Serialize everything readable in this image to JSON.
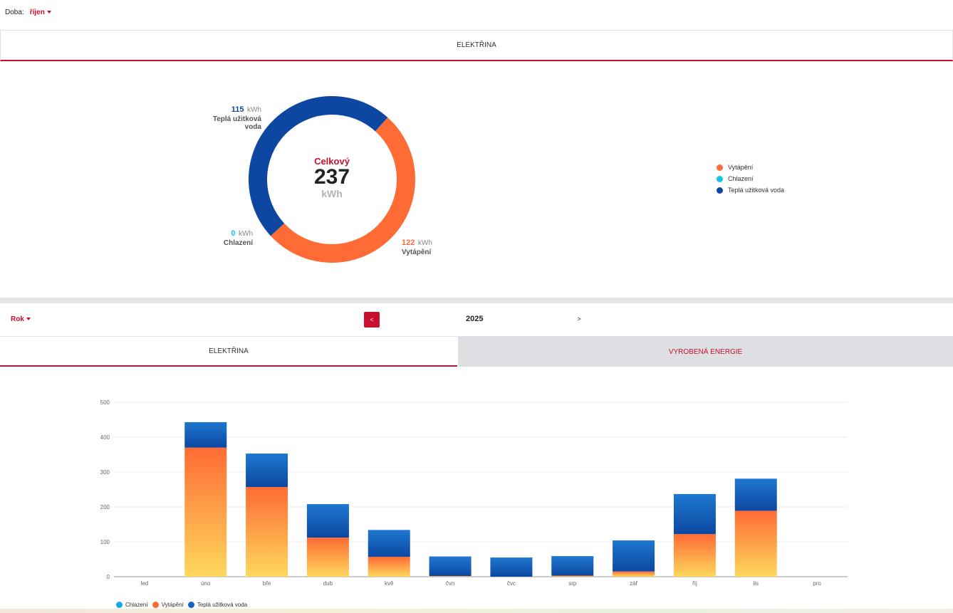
{
  "period": {
    "label": "Doba:",
    "value": "říjen"
  },
  "top_tab": {
    "label": "ELEKTŘINA"
  },
  "donut": {
    "center_title": "Celkový",
    "center_value": "237",
    "center_unit": "kWh",
    "unit": "kWh",
    "segments": [
      {
        "name": "Vytápění",
        "value": 122,
        "color": "#ff6b35"
      },
      {
        "name": "Chlazení",
        "value": 0,
        "color": "#18c3e8"
      },
      {
        "name": "Teplá užitková voda",
        "value": 115,
        "color": "#0d47a1"
      }
    ],
    "labels": {
      "heating": {
        "value": "122",
        "unit": "kWh",
        "name": "Vytápění"
      },
      "cooling": {
        "value": "0",
        "unit": "kWh",
        "name": "Chlazení"
      },
      "hot_water": {
        "value": "115",
        "unit": "kWh",
        "name": "Teplá užitková voda"
      }
    }
  },
  "legend": [
    {
      "label": "Vytápění",
      "color": "#ff6b35"
    },
    {
      "label": "Chlazení",
      "color": "#18c3e8"
    },
    {
      "label": "Teplá užitková voda",
      "color": "#0d47a1"
    }
  ],
  "year_nav": {
    "granularity": "Rok",
    "prev_label": "<",
    "year": "2025",
    "next_label": ">"
  },
  "tabs": {
    "electricity": "ELEKTŘINA",
    "produced": "VYROBENÁ ENERGIE"
  },
  "chart_data": {
    "type": "bar",
    "stacked": true,
    "categories": [
      "led",
      "úno",
      "bře",
      "dub",
      "kvě",
      "čvn",
      "čvc",
      "srp",
      "zář",
      "říj",
      "lis",
      "pro"
    ],
    "series": [
      {
        "name": "Chlazení",
        "values": [
          0,
          0,
          0,
          0,
          0,
          0,
          0,
          0,
          0,
          0,
          0,
          0
        ]
      },
      {
        "name": "Vytápění",
        "values": [
          0,
          370,
          257,
          112,
          57,
          2,
          0,
          3,
          15,
          122,
          189,
          0
        ]
      },
      {
        "name": "Teplá užitková voda",
        "values": [
          0,
          73,
          96,
          96,
          77,
          56,
          55,
          56,
          89,
          115,
          92,
          0
        ]
      }
    ],
    "yticks": [
      0,
      100,
      200,
      300,
      400,
      500
    ],
    "ylim": [
      0,
      500
    ],
    "grid": true,
    "legend_position": "bottom-left",
    "colors": {
      "Chlazení": "#18a7e8",
      "Vytápění": "#ff6b35",
      "Teplá užitková voda": "#1565c0"
    }
  }
}
